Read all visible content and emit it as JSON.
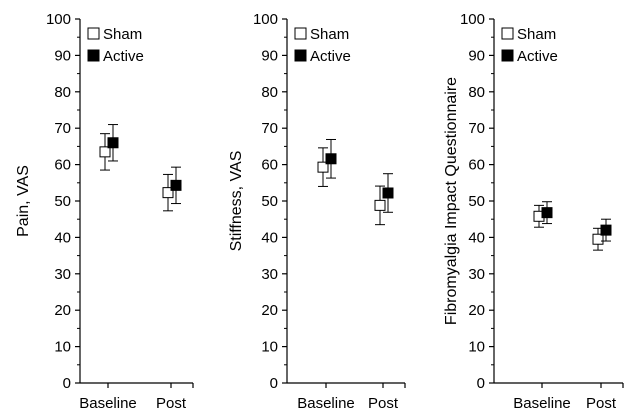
{
  "chart_data": [
    {
      "type": "scatter",
      "ylabel": "Pain, VAS",
      "ylim": [
        0,
        100
      ],
      "yticks": [
        0,
        10,
        20,
        30,
        40,
        50,
        60,
        70,
        80,
        90,
        100
      ],
      "categories": [
        "Baseline",
        "Post"
      ],
      "series": [
        {
          "name": "Sham",
          "values": [
            63.5,
            52.3
          ],
          "error": [
            5,
            5
          ]
        },
        {
          "name": "Active",
          "values": [
            66,
            54.3
          ],
          "error": [
            5,
            5
          ]
        }
      ],
      "legend": "top-left"
    },
    {
      "type": "scatter",
      "ylabel": "Stiffness, VAS",
      "ylim": [
        0,
        100
      ],
      "yticks": [
        0,
        10,
        20,
        30,
        40,
        50,
        60,
        70,
        80,
        90,
        100
      ],
      "categories": [
        "Baseline",
        "Post"
      ],
      "series": [
        {
          "name": "Sham",
          "values": [
            59.3,
            48.8
          ],
          "error": [
            5.3,
            5.3
          ]
        },
        {
          "name": "Active",
          "values": [
            61.6,
            52.2
          ],
          "error": [
            5.3,
            5.3
          ]
        }
      ],
      "legend": "top-left"
    },
    {
      "type": "scatter",
      "ylabel": "Fibromyalgia Impact Questionnaire",
      "ylim": [
        0,
        100
      ],
      "yticks": [
        0,
        10,
        20,
        30,
        40,
        50,
        60,
        70,
        80,
        90,
        100
      ],
      "categories": [
        "Baseline",
        "Post"
      ],
      "series": [
        {
          "name": "Sham",
          "values": [
            45.8,
            39.5
          ],
          "error": [
            3,
            3
          ]
        },
        {
          "name": "Active",
          "values": [
            46.8,
            42
          ],
          "error": [
            3,
            3
          ]
        }
      ],
      "legend": "top-left"
    }
  ]
}
